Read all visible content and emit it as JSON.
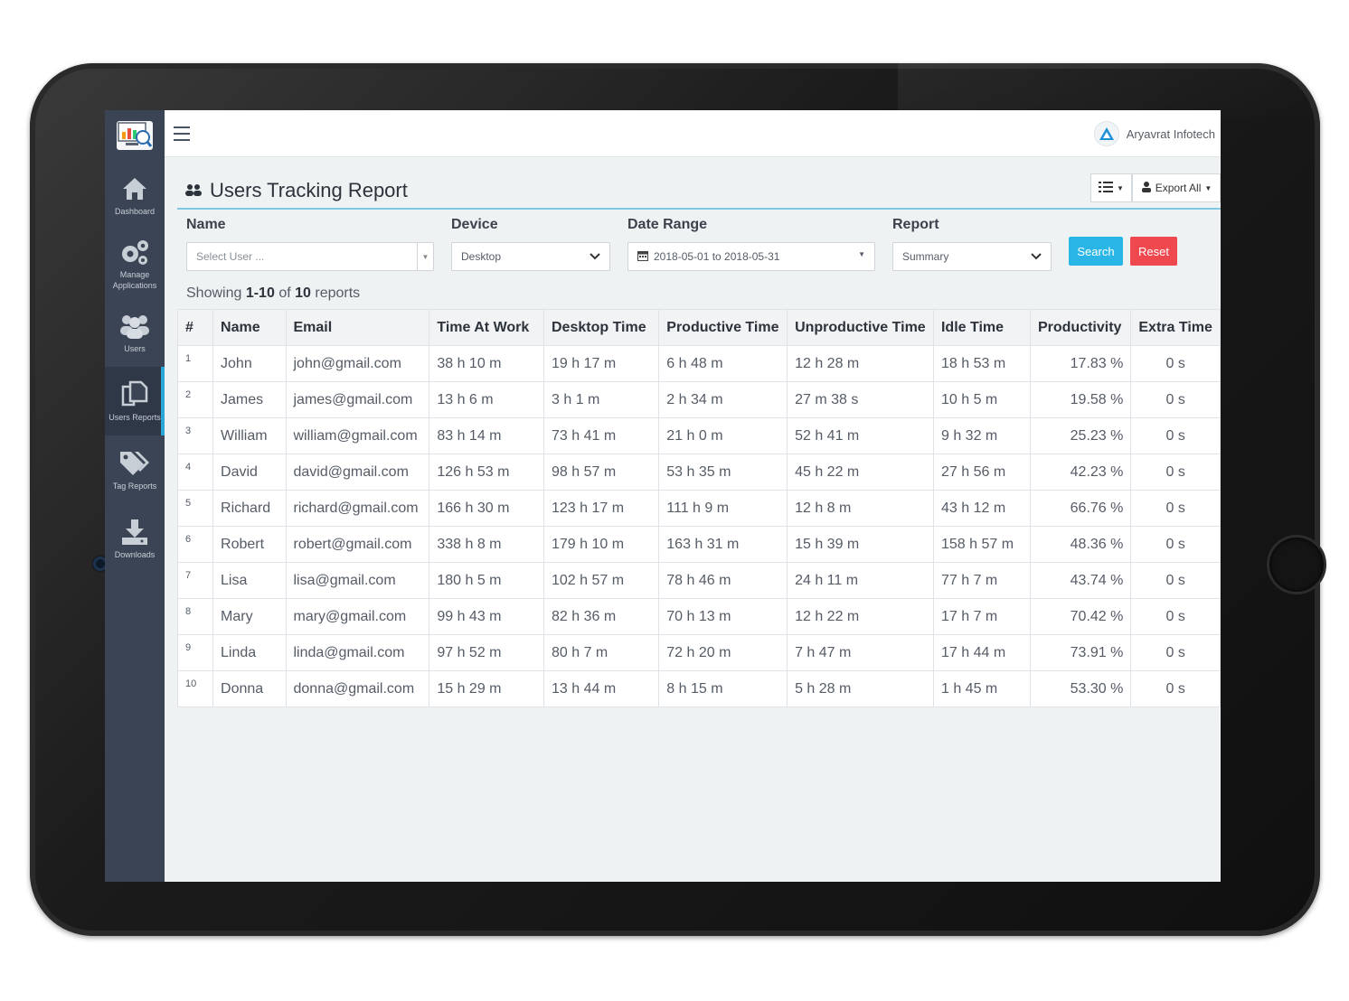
{
  "app": {
    "user_name": "Aryavrat Infotech"
  },
  "sidebar": {
    "items": [
      {
        "label": "Dashboard",
        "icon": "home-icon"
      },
      {
        "label": "Manage Applications",
        "icon": "gears-icon"
      },
      {
        "label": "Users",
        "icon": "users-icon"
      },
      {
        "label": "Users Reports",
        "icon": "copy-icon"
      },
      {
        "label": "Tag Reports",
        "icon": "tags-icon"
      },
      {
        "label": "Downloads",
        "icon": "download-icon"
      }
    ]
  },
  "page": {
    "title": "Users Tracking Report",
    "export_label": "Export All",
    "showing": {
      "prefix": "Showing",
      "range": "1-10",
      "of": "of",
      "total": "10",
      "suffix": "reports"
    }
  },
  "filters": {
    "name": {
      "label": "Name",
      "placeholder": "Select User ..."
    },
    "device": {
      "label": "Device",
      "value": "Desktop"
    },
    "date_range": {
      "label": "Date Range",
      "value": "2018-05-01 to 2018-05-31"
    },
    "report": {
      "label": "Report",
      "value": "Summary"
    },
    "search_label": "Search",
    "reset_label": "Reset"
  },
  "table": {
    "headers": [
      "#",
      "Name",
      "Email",
      "Time At Work",
      "Desktop Time",
      "Productive Time",
      "Unproductive Time",
      "Idle Time",
      "Productivity",
      "Extra Time"
    ],
    "rows": [
      [
        "1",
        "John",
        "john@gmail.com",
        "38 h 10 m",
        "19 h 17 m",
        "6 h 48 m",
        "12 h 28 m",
        "18 h 53 m",
        "17.83 %",
        "0 s"
      ],
      [
        "2",
        "James",
        "james@gmail.com",
        "13 h 6 m",
        "3 h 1 m",
        "2 h 34 m",
        "27 m 38 s",
        "10 h 5 m",
        "19.58 %",
        "0 s"
      ],
      [
        "3",
        "William",
        "william@gmail.com",
        "83 h 14 m",
        "73 h 41 m",
        "21 h 0 m",
        "52 h 41 m",
        "9 h 32 m",
        "25.23 %",
        "0 s"
      ],
      [
        "4",
        "David",
        "david@gmail.com",
        "126 h 53 m",
        "98 h 57 m",
        "53 h 35 m",
        "45 h 22 m",
        "27 h 56 m",
        "42.23 %",
        "0 s"
      ],
      [
        "5",
        "Richard",
        "richard@gmail.com",
        "166 h 30 m",
        "123 h 17 m",
        "111 h 9 m",
        "12 h 8 m",
        "43 h 12 m",
        "66.76 %",
        "0 s"
      ],
      [
        "6",
        "Robert",
        "robert@gmail.com",
        "338 h 8 m",
        "179 h 10 m",
        "163 h 31 m",
        "15 h 39 m",
        "158 h 57 m",
        "48.36 %",
        "0 s"
      ],
      [
        "7",
        "Lisa",
        "lisa@gmail.com",
        "180 h 5 m",
        "102 h 57 m",
        "78 h 46 m",
        "24 h 11 m",
        "77 h 7 m",
        "43.74 %",
        "0 s"
      ],
      [
        "8",
        "Mary",
        "mary@gmail.com",
        "99 h 43 m",
        "82 h 36 m",
        "70 h 13 m",
        "12 h 22 m",
        "17 h 7 m",
        "70.42 %",
        "0 s"
      ],
      [
        "9",
        "Linda",
        "linda@gmail.com",
        "97 h 52 m",
        "80 h 7 m",
        "72 h 20 m",
        "7 h 47 m",
        "17 h 44 m",
        "73.91 %",
        "0 s"
      ],
      [
        "10",
        "Donna",
        "donna@gmail.com",
        "15 h 29 m",
        "13 h 44 m",
        "8 h 15 m",
        "5 h 28 m",
        "1 h 45 m",
        "53.30 %",
        "0 s"
      ]
    ]
  },
  "colors": {
    "sidebar": "#3a4454",
    "accent": "#29a8d8",
    "search": "#29b6e6",
    "reset": "#f0484f"
  }
}
